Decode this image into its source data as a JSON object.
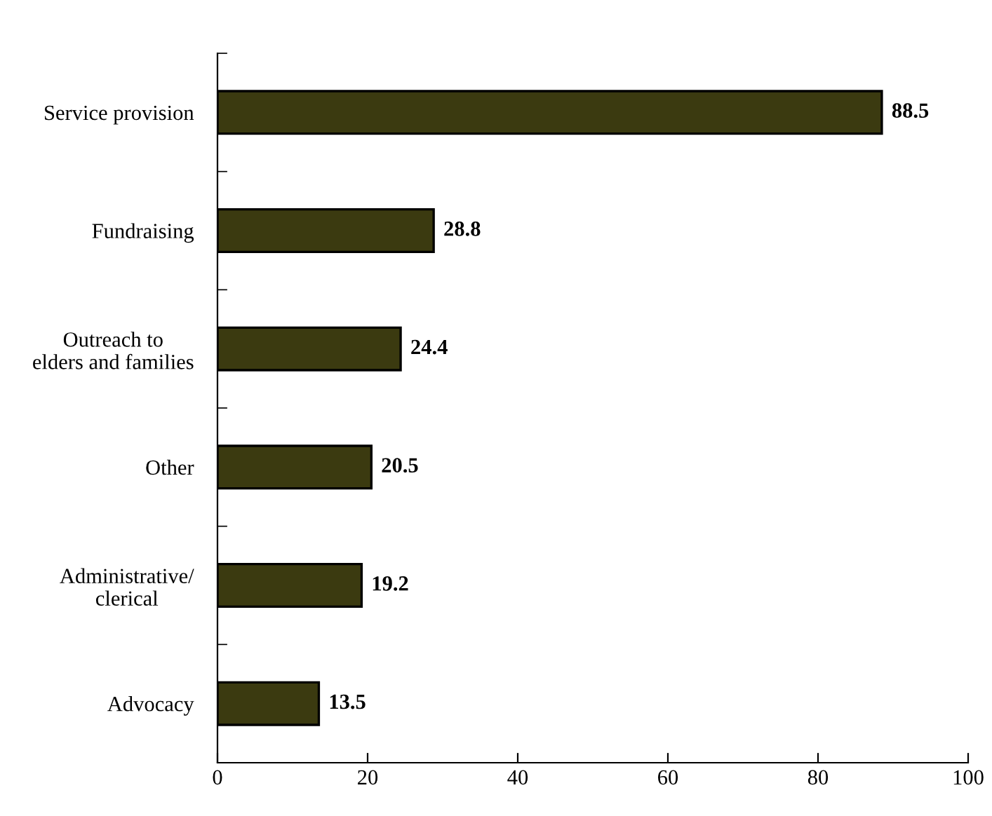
{
  "chart_data": {
    "type": "bar",
    "orientation": "horizontal",
    "categories": [
      "Service provision",
      "Fundraising",
      "Outreach to\nelders and families",
      "Other",
      "Administrative/\nclerical",
      "Advocacy"
    ],
    "values": [
      88.5,
      28.8,
      24.4,
      20.5,
      19.2,
      13.5
    ],
    "color": "#3b3a10",
    "xlim": [
      0,
      100
    ],
    "xticks": [
      0,
      20,
      40,
      60,
      80,
      100
    ],
    "grid": false,
    "legend": false,
    "data_labels": true
  }
}
